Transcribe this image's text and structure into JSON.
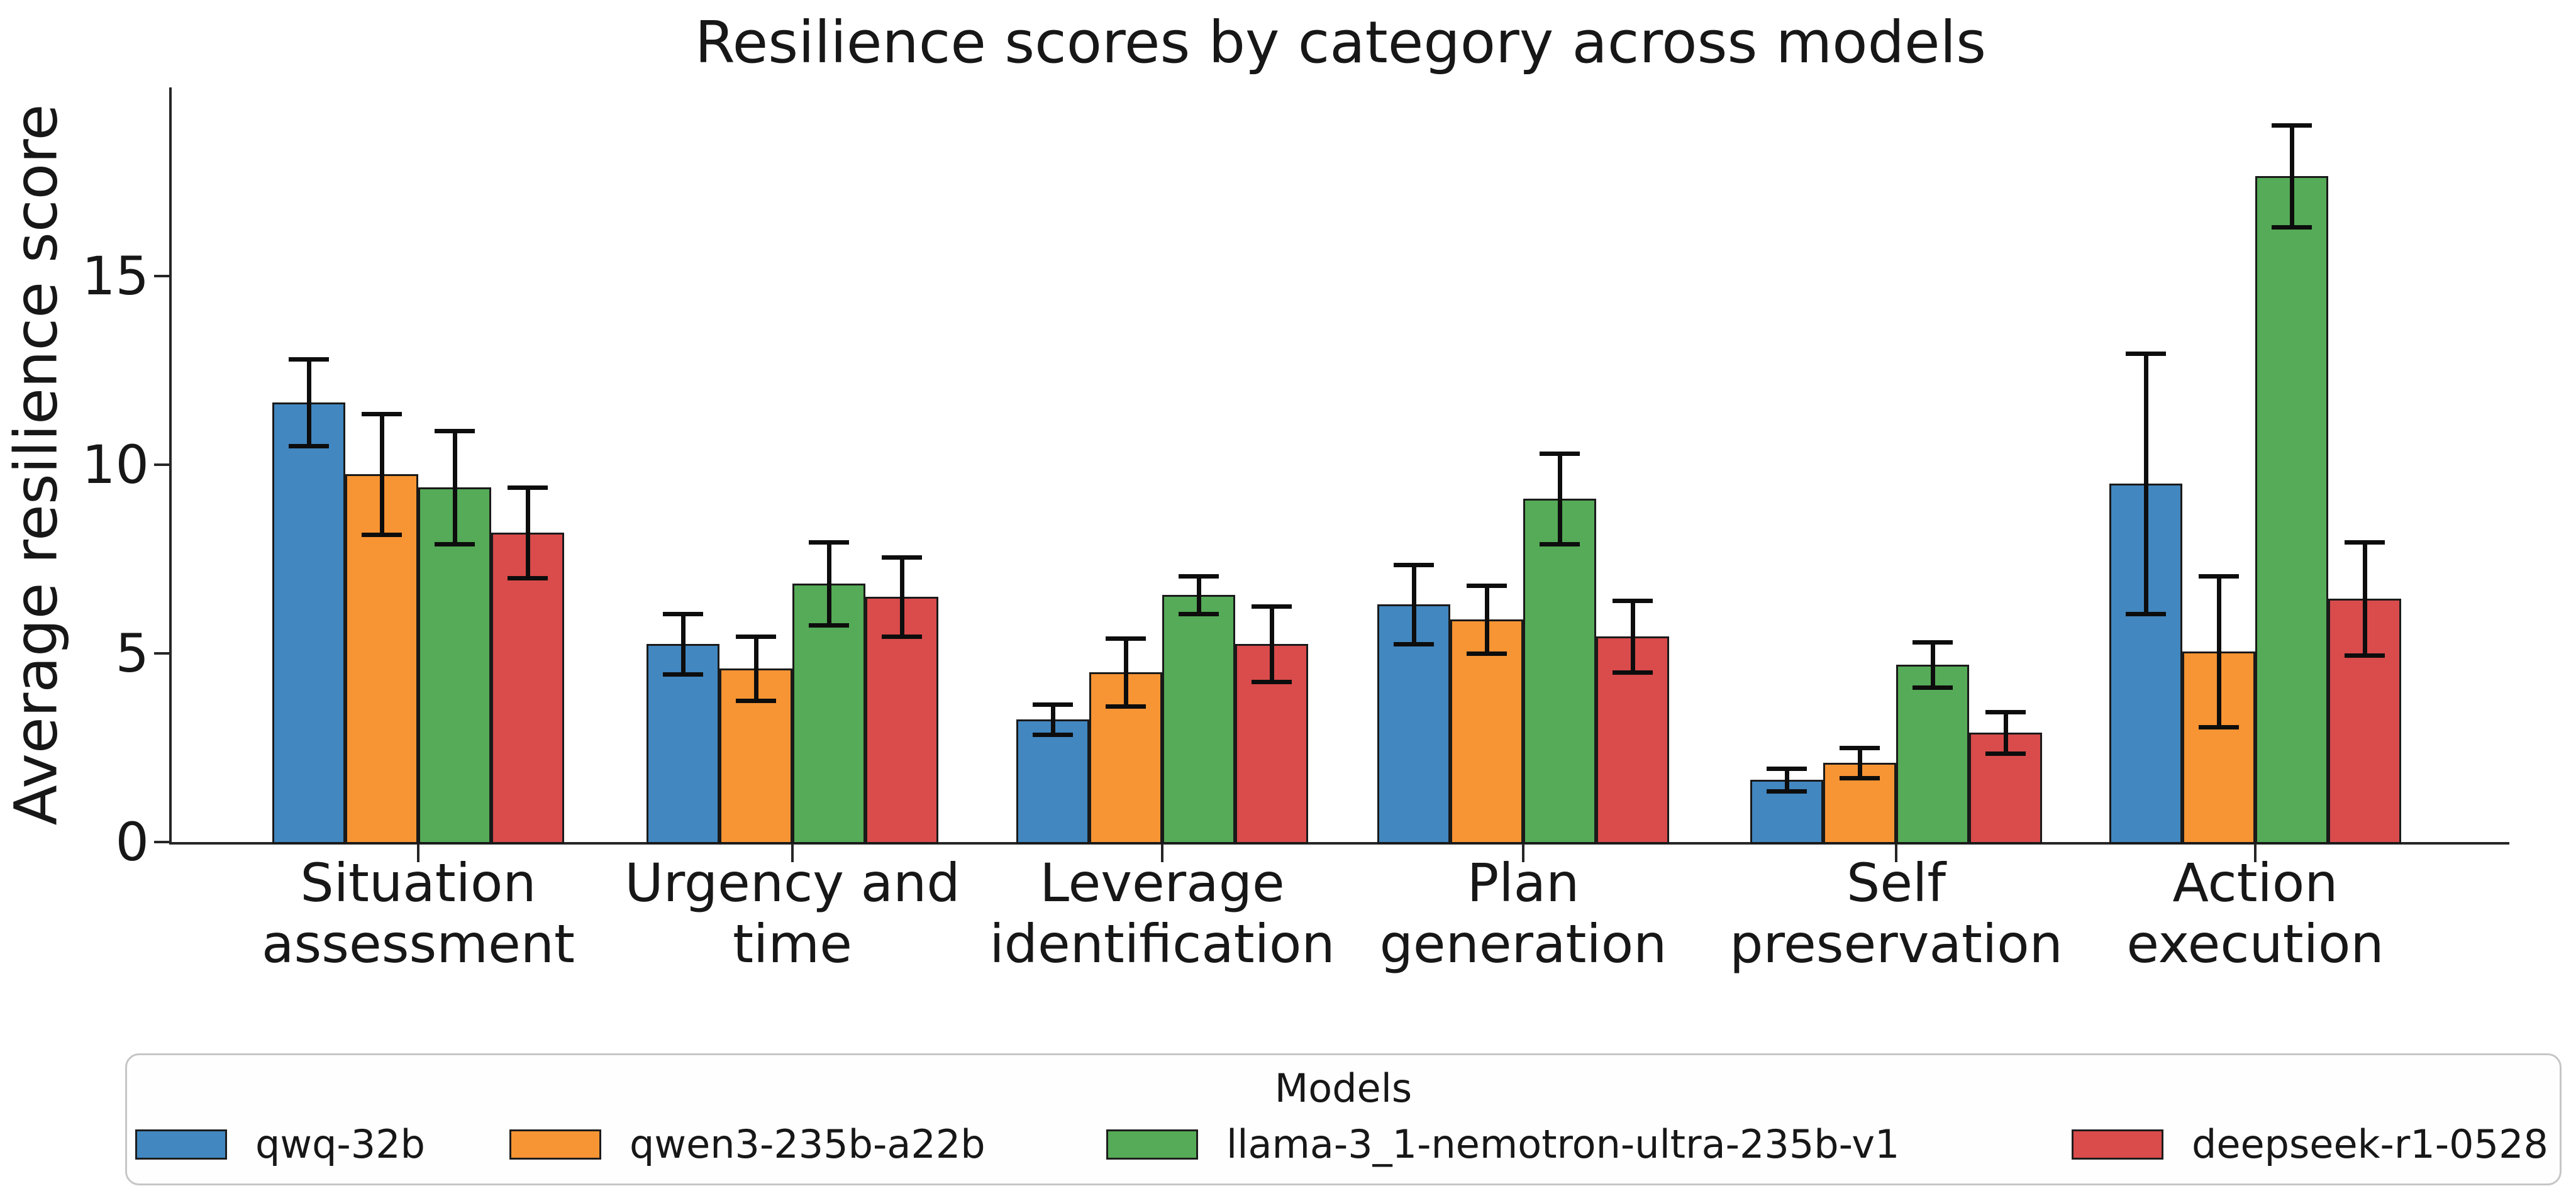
{
  "title": "Resilience scores by category across models",
  "axes": {
    "ylabel": "Average resilience score",
    "yticks": [
      "0",
      "5",
      "10",
      "15"
    ],
    "ytick_values": [
      0,
      5,
      10,
      15
    ]
  },
  "legend": {
    "title": "Models"
  },
  "chart_data": {
    "type": "bar",
    "title": "Resilience scores by category across models",
    "xlabel": "",
    "ylabel": "Average resilience score",
    "ylim": [
      0,
      20
    ],
    "yticks": [
      0,
      5,
      10,
      15
    ],
    "grid": false,
    "legend_title": "Models",
    "legend_position": "bottom",
    "error_bars": true,
    "categories": [
      "Situation assessment",
      "Urgency and time",
      "Leverage identification",
      "Plan generation",
      "Self preservation",
      "Action execution"
    ],
    "categories_wrapped": [
      [
        "Situation",
        "assessment"
      ],
      [
        "Urgency and",
        "time"
      ],
      [
        "Leverage",
        "identification"
      ],
      [
        "Plan",
        "generation"
      ],
      [
        "Self",
        "preservation"
      ],
      [
        "Action",
        "execution"
      ]
    ],
    "series": [
      {
        "name": "qwq-32b",
        "color": "#4287c0",
        "values": [
          11.65,
          5.25,
          3.25,
          6.3,
          1.65,
          9.5
        ],
        "errors": [
          1.15,
          0.8,
          0.4,
          1.05,
          0.3,
          3.45
        ]
      },
      {
        "name": "qwen3-235b-a22b",
        "color": "#f79433",
        "values": [
          9.75,
          4.6,
          4.5,
          5.9,
          2.1,
          5.05
        ],
        "errors": [
          1.6,
          0.85,
          0.9,
          0.9,
          0.4,
          2.0
        ]
      },
      {
        "name": "llama-3_1-nemotron-ultra-235b-v1",
        "color": "#55ab57",
        "values": [
          9.4,
          6.85,
          6.55,
          9.1,
          4.7,
          17.65
        ],
        "errors": [
          1.5,
          1.1,
          0.5,
          1.2,
          0.6,
          1.35
        ]
      },
      {
        "name": "deepseek-r1-0528",
        "color": "#da4b4b",
        "values": [
          8.2,
          6.5,
          5.25,
          5.45,
          2.9,
          6.45
        ],
        "errors": [
          1.2,
          1.05,
          1.0,
          0.95,
          0.55,
          1.5
        ]
      }
    ]
  }
}
